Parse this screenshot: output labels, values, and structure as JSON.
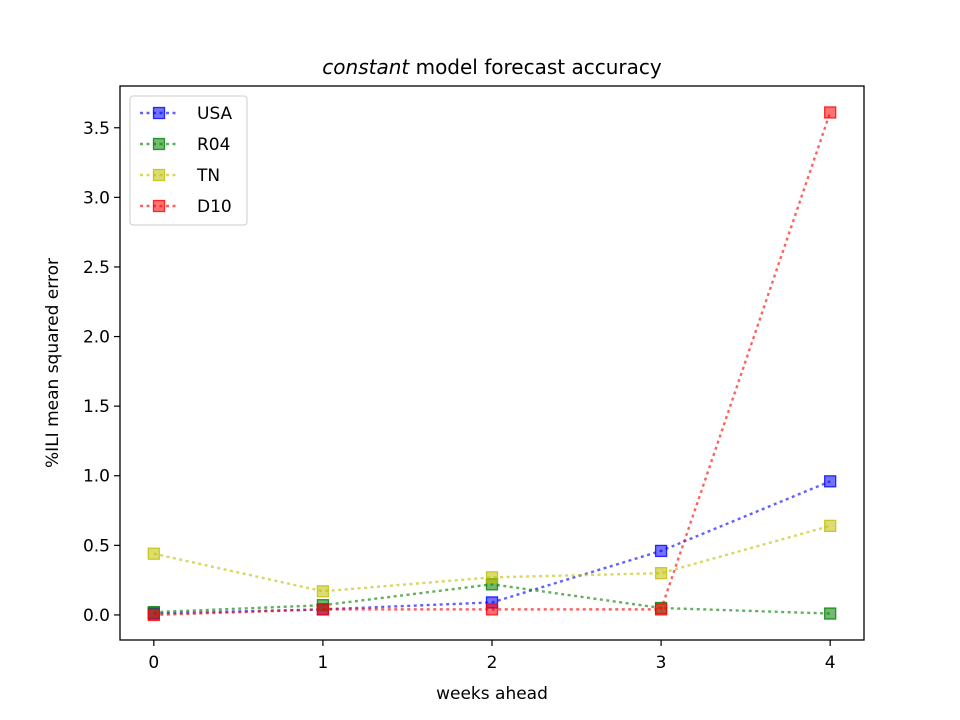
{
  "chart_data": {
    "type": "line",
    "title_italic": "constant",
    "title_rest": " model forecast accuracy",
    "xlabel": "weeks ahead",
    "ylabel": "%ILI mean squared error",
    "x": [
      0,
      1,
      2,
      3,
      4
    ],
    "xticks": [
      "0",
      "1",
      "2",
      "3",
      "4"
    ],
    "xlim": [
      -0.2,
      4.2
    ],
    "yticks": [
      "0.0",
      "0.5",
      "1.0",
      "1.5",
      "2.0",
      "2.5",
      "3.0",
      "3.5"
    ],
    "ylim": [
      -0.18,
      3.8
    ],
    "legend_position": "upper-left",
    "series": [
      {
        "name": "USA",
        "color": "#0000ff",
        "values": [
          0.01,
          0.04,
          0.09,
          0.46,
          0.96
        ]
      },
      {
        "name": "R04",
        "color": "#008000",
        "values": [
          0.02,
          0.07,
          0.22,
          0.05,
          0.01
        ]
      },
      {
        "name": "TN",
        "color": "#bfbf00",
        "values": [
          0.44,
          0.17,
          0.27,
          0.3,
          0.64
        ]
      },
      {
        "name": "D10",
        "color": "#ff0000",
        "values": [
          0.0,
          0.04,
          0.04,
          0.04,
          3.61
        ]
      }
    ]
  }
}
